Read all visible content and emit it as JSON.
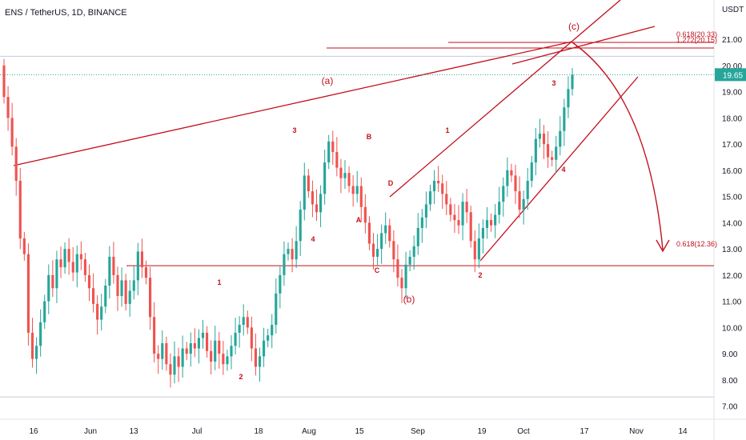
{
  "header": {
    "symbol_title": "ENS / TetherUS, 1D, BINANCE"
  },
  "price_axis": {
    "currency": "USDT",
    "current_price_label": "19.65"
  },
  "chart_data": {
    "type": "candlestick",
    "title": "ENS / TetherUS, 1D, BINANCE",
    "y_unit": "USDT",
    "ylim": [
      6.5,
      22.5
    ],
    "y_ticks": [
      "7.00",
      "8.00",
      "9.00",
      "10.00",
      "11.00",
      "12.00",
      "13.00",
      "14.00",
      "15.00",
      "16.00",
      "17.00",
      "18.00",
      "19.00",
      "20.00",
      "21.00"
    ],
    "x_ticks": [
      "16",
      "Jun",
      "13",
      "Jul",
      "18",
      "Aug",
      "15",
      "Sep",
      "19",
      "Oct",
      "17",
      "Nov",
      "14"
    ],
    "current_price": 19.65,
    "colors": {
      "up": "#26a69a",
      "down": "#ef5350",
      "drawing": "#c2101e",
      "label": "#c2101e"
    },
    "fib_labels": [
      {
        "text": "0.618(20.33)",
        "price": 20.33
      },
      {
        "text": "1.272(20.15)",
        "price": 20.15
      },
      {
        "text": "0.618(12.36)",
        "price": 12.36
      }
    ],
    "wave_labels": [
      {
        "text": "(a)",
        "price": 18.8
      },
      {
        "text": "(b)",
        "price": 10.95
      },
      {
        "text": "(c)",
        "price": 20.9
      },
      {
        "text": "A",
        "price": 13.7
      },
      {
        "text": "B",
        "price": 16.8
      },
      {
        "text": "C",
        "price": 12.2
      },
      {
        "text": "D",
        "price": 15.0
      },
      {
        "text": "1",
        "price": 11.9
      },
      {
        "text": "2",
        "price": 8.3
      },
      {
        "text": "3",
        "price": 16.95
      },
      {
        "text": "4",
        "price": 12.5
      },
      {
        "text": "1",
        "price": 16.95
      },
      {
        "text": "2",
        "price": 11.6
      },
      {
        "text": "3",
        "price": 18.8
      },
      {
        "text": "4",
        "price": 15.5
      }
    ],
    "candles_close": [
      18.8,
      18.0,
      16.9,
      15.6,
      13.4,
      12.8,
      9.8,
      8.8,
      9.3,
      10.2,
      11.0,
      12.0,
      11.5,
      12.6,
      12.3,
      13.0,
      12.5,
      12.1,
      12.8,
      12.6,
      12.0,
      11.5,
      10.9,
      10.3,
      10.8,
      11.6,
      12.7,
      12.0,
      11.2,
      11.8,
      10.9,
      11.4,
      11.8,
      12.9,
      12.3,
      11.9,
      10.4,
      9.0,
      8.8,
      9.4,
      8.6,
      8.2,
      8.9,
      8.5,
      9.2,
      9.0,
      9.4,
      9.2,
      9.6,
      9.8,
      9.1,
      8.7,
      9.5,
      9.0,
      8.6,
      8.9,
      9.3,
      9.8,
      10.1,
      10.4,
      10.0,
      9.2,
      8.5,
      8.9,
      9.5,
      9.7,
      10.1,
      11.3,
      12.0,
      12.8,
      13.0,
      12.6,
      13.3,
      14.5,
      15.8,
      15.2,
      14.7,
      14.4,
      15.1,
      16.3,
      17.1,
      16.7,
      16.1,
      15.7,
      15.9,
      15.4,
      15.1,
      15.4,
      14.6,
      14.0,
      13.2,
      12.7,
      13.0,
      13.6,
      13.9,
      13.3,
      12.6,
      11.9,
      11.5,
      12.4,
      12.7,
      13.1,
      13.8,
      14.2,
      14.7,
      15.2,
      15.6,
      15.5,
      15.1,
      14.7,
      14.3,
      14.1,
      13.9,
      14.8,
      14.4,
      13.3,
      12.6,
      13.4,
      13.8,
      14.1,
      13.9,
      14.3,
      14.8,
      15.4,
      16.0,
      15.8,
      15.2,
      14.5,
      14.9,
      15.6,
      16.3,
      17.2,
      17.4,
      17.0,
      16.5,
      16.4,
      16.9,
      17.5,
      18.4,
      19.1,
      19.65
    ]
  }
}
